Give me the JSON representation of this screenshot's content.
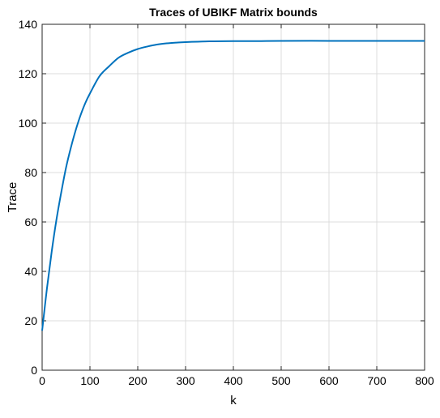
{
  "chart_data": {
    "type": "line",
    "title": "Traces of UBIKF Matrix bounds",
    "xlabel": "k",
    "ylabel": "Trace",
    "xlim": [
      0,
      800
    ],
    "ylim": [
      0,
      140
    ],
    "xticks": [
      "0",
      "100",
      "200",
      "300",
      "400",
      "500",
      "600",
      "700",
      "800"
    ],
    "yticks": [
      "0",
      "20",
      "40",
      "60",
      "80",
      "100",
      "120",
      "140"
    ],
    "grid": true,
    "series": [
      {
        "color": "#0072bd",
        "x": [
          0,
          10,
          20,
          30,
          40,
          50,
          60,
          70,
          80,
          90,
          100,
          120,
          140,
          160,
          180,
          200,
          220,
          240,
          260,
          280,
          300,
          350,
          400,
          450,
          500,
          600,
          700,
          800
        ],
        "y": [
          16,
          33,
          48,
          61,
          72,
          82,
          90,
          97,
          103,
          108,
          112,
          119,
          123,
          126.5,
          128.5,
          130,
          131,
          131.8,
          132.3,
          132.6,
          132.8,
          133.1,
          133.2,
          133.2,
          133.3,
          133.3,
          133.3,
          133.3
        ]
      }
    ]
  }
}
